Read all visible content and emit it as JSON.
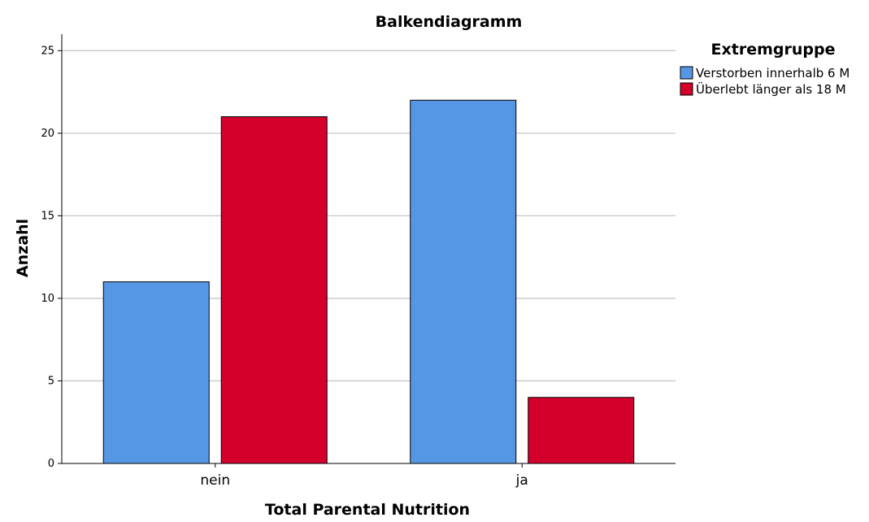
{
  "chart_data": {
    "type": "bar",
    "title": "Balkendiagramm",
    "xlabel": "Total Parental Nutrition",
    "ylabel": "Anzahl",
    "categories": [
      "nein",
      "ja"
    ],
    "series": [
      {
        "name": "Verstorben innerhalb 6 M",
        "values": [
          11,
          22
        ],
        "color": "#5596e5"
      },
      {
        "name": "Überlebt länger als 18 M",
        "values": [
          21,
          4
        ],
        "color": "#d3002c"
      }
    ],
    "ylim": [
      0,
      26
    ],
    "yticks": [
      0,
      5,
      10,
      15,
      20,
      25
    ],
    "grid": true,
    "legend": {
      "title": "Extremgruppe",
      "placement": "right"
    }
  }
}
